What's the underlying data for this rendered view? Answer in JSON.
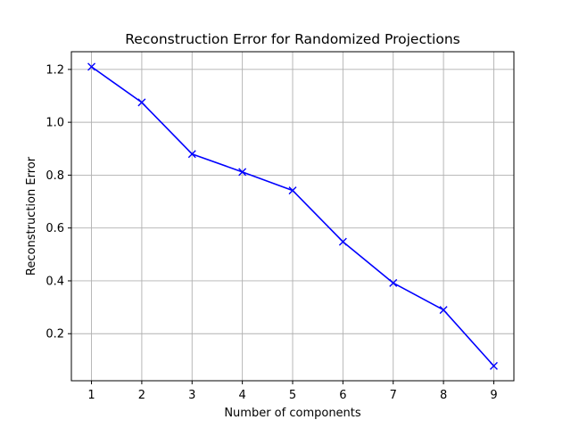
{
  "chart_data": {
    "type": "line",
    "title": "Reconstruction Error for Randomized Projections",
    "xlabel": "Number of components",
    "ylabel": "Reconstruction Error",
    "x": [
      1,
      2,
      3,
      4,
      5,
      6,
      7,
      8,
      9
    ],
    "series": [
      {
        "values": [
          1.21,
          1.075,
          0.88,
          0.812,
          0.742,
          0.548,
          0.392,
          0.29,
          0.078
        ],
        "color": "#0000ff",
        "marker": "x"
      }
    ],
    "xticks": [
      "1",
      "2",
      "3",
      "4",
      "5",
      "6",
      "7",
      "8",
      "9"
    ],
    "yticks": [
      "0.2",
      "0.4",
      "0.6",
      "0.8",
      "1.0",
      "1.2"
    ],
    "xlim": [
      0.6,
      9.4
    ],
    "ylim": [
      0.022,
      1.267
    ],
    "grid": true
  }
}
